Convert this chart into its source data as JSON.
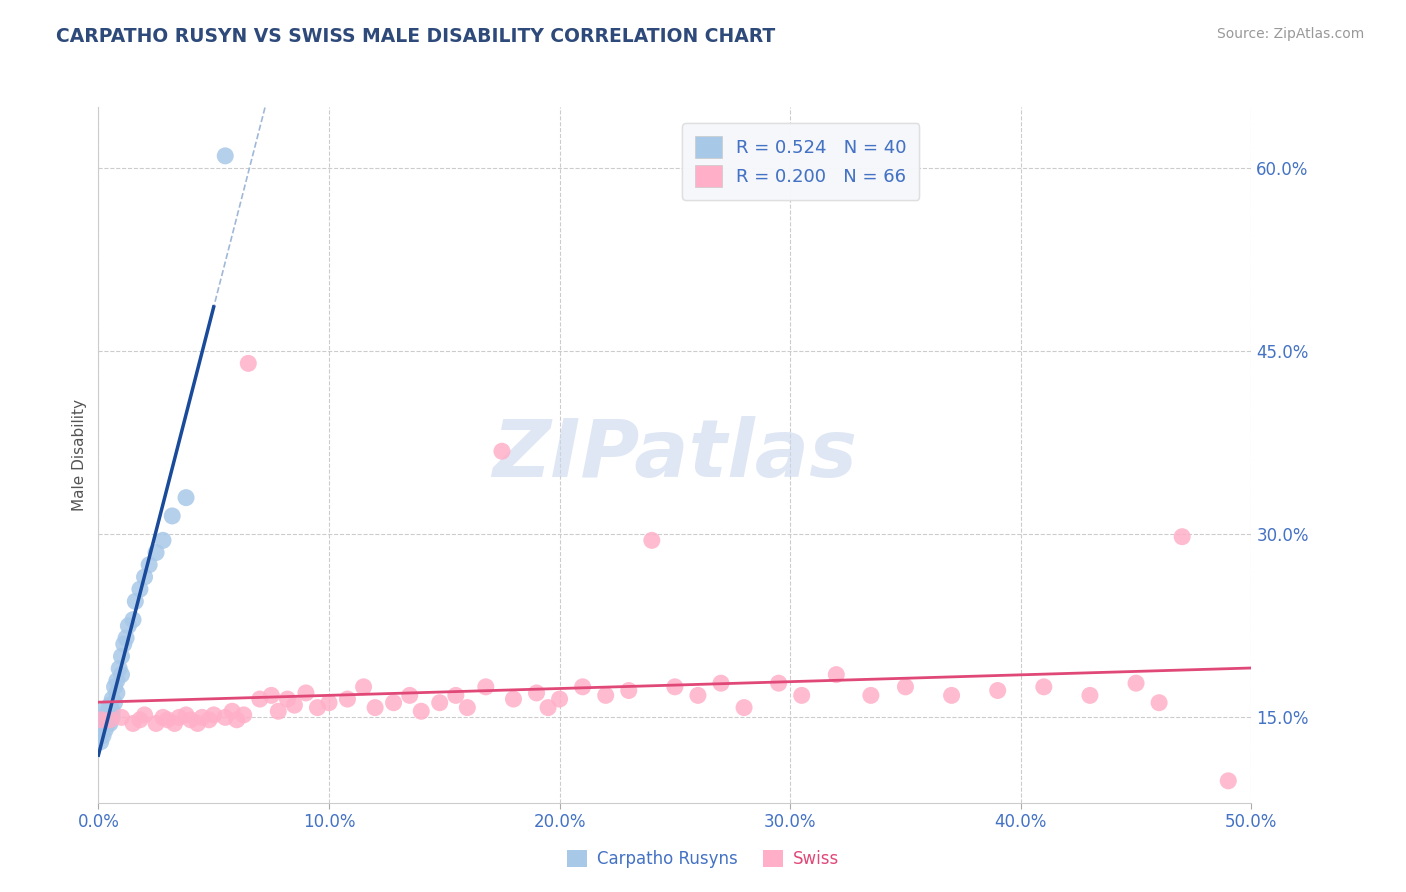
{
  "title": "CARPATHO RUSYN VS SWISS MALE DISABILITY CORRELATION CHART",
  "source": "Source: ZipAtlas.com",
  "legend_label1": "Carpatho Rusyns",
  "legend_label2": "Swiss",
  "ylabel": "Male Disability",
  "xlim": [
    0.0,
    0.5
  ],
  "ylim": [
    0.08,
    0.65
  ],
  "xticks": [
    0.0,
    0.1,
    0.2,
    0.3,
    0.4,
    0.5
  ],
  "yticks": [
    0.15,
    0.3,
    0.45,
    0.6
  ],
  "ytick_labels": [
    "15.0%",
    "30.0%",
    "45.0%",
    "60.0%"
  ],
  "xtick_labels": [
    "0.0%",
    "10.0%",
    "20.0%",
    "30.0%",
    "40.0%",
    "50.0%"
  ],
  "blue_R": 0.524,
  "blue_N": 40,
  "pink_R": 0.2,
  "pink_N": 66,
  "blue_color": "#a8c8e8",
  "pink_color": "#ffb0c8",
  "blue_line_color": "#1a4a9a",
  "pink_line_color": "#e04878",
  "dash_color": "#a0b8d8",
  "watermark": "ZIPatlas",
  "background_color": "#ffffff",
  "grid_color": "#cccccc",
  "blue_scatter_x": [
    0.001,
    0.001,
    0.002,
    0.002,
    0.002,
    0.003,
    0.003,
    0.003,
    0.004,
    0.004,
    0.004,
    0.004,
    0.005,
    0.005,
    0.005,
    0.005,
    0.005,
    0.006,
    0.006,
    0.006,
    0.007,
    0.007,
    0.008,
    0.008,
    0.009,
    0.01,
    0.01,
    0.011,
    0.012,
    0.013,
    0.015,
    0.016,
    0.018,
    0.02,
    0.022,
    0.025,
    0.028,
    0.032,
    0.038,
    0.055
  ],
  "blue_scatter_y": [
    0.13,
    0.145,
    0.135,
    0.155,
    0.148,
    0.14,
    0.15,
    0.145,
    0.148,
    0.155,
    0.145,
    0.15,
    0.148,
    0.155,
    0.145,
    0.16,
    0.152,
    0.155,
    0.165,
    0.15,
    0.162,
    0.175,
    0.17,
    0.18,
    0.19,
    0.2,
    0.185,
    0.21,
    0.215,
    0.225,
    0.23,
    0.245,
    0.255,
    0.265,
    0.275,
    0.285,
    0.295,
    0.315,
    0.33,
    0.61
  ],
  "pink_scatter_x": [
    0.001,
    0.005,
    0.01,
    0.015,
    0.018,
    0.02,
    0.025,
    0.028,
    0.03,
    0.033,
    0.035,
    0.038,
    0.04,
    0.043,
    0.045,
    0.048,
    0.05,
    0.055,
    0.058,
    0.06,
    0.063,
    0.065,
    0.07,
    0.075,
    0.078,
    0.082,
    0.085,
    0.09,
    0.095,
    0.1,
    0.108,
    0.115,
    0.12,
    0.128,
    0.135,
    0.14,
    0.148,
    0.155,
    0.16,
    0.168,
    0.175,
    0.18,
    0.19,
    0.195,
    0.2,
    0.21,
    0.22,
    0.23,
    0.24,
    0.25,
    0.26,
    0.27,
    0.28,
    0.295,
    0.305,
    0.32,
    0.335,
    0.35,
    0.37,
    0.39,
    0.41,
    0.43,
    0.45,
    0.46,
    0.47,
    0.49
  ],
  "pink_scatter_y": [
    0.148,
    0.148,
    0.15,
    0.145,
    0.148,
    0.152,
    0.145,
    0.15,
    0.148,
    0.145,
    0.15,
    0.152,
    0.148,
    0.145,
    0.15,
    0.148,
    0.152,
    0.15,
    0.155,
    0.148,
    0.152,
    0.44,
    0.165,
    0.168,
    0.155,
    0.165,
    0.16,
    0.17,
    0.158,
    0.162,
    0.165,
    0.175,
    0.158,
    0.162,
    0.168,
    0.155,
    0.162,
    0.168,
    0.158,
    0.175,
    0.368,
    0.165,
    0.17,
    0.158,
    0.165,
    0.175,
    0.168,
    0.172,
    0.295,
    0.175,
    0.168,
    0.178,
    0.158,
    0.178,
    0.168,
    0.185,
    0.168,
    0.175,
    0.168,
    0.172,
    0.175,
    0.168,
    0.178,
    0.162,
    0.298,
    0.098
  ]
}
